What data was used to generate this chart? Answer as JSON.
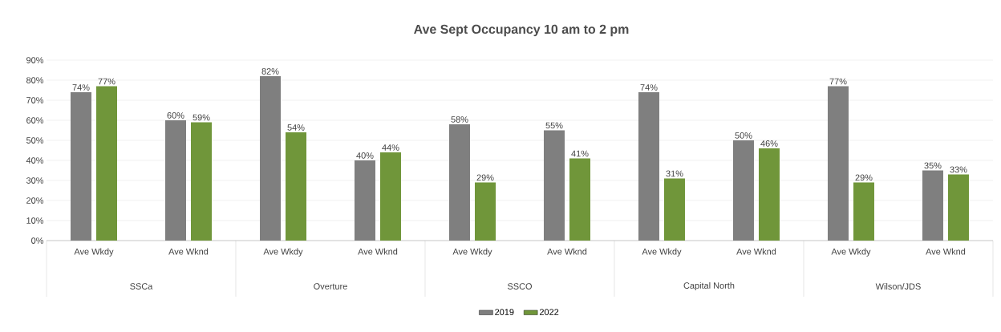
{
  "chart_data": {
    "type": "bar",
    "title": "Ave Sept Occupancy 10 am to 2 pm",
    "categories": [
      "Ave Wkdy",
      "Ave Wknd",
      "Ave Wkdy",
      "Ave Wknd",
      "Ave Wkdy",
      "Ave Wknd",
      "Ave Wkdy",
      "Ave Wknd",
      "Ave Wkdy",
      "Ave Wknd"
    ],
    "annotations": [
      "SSCa",
      "Overture",
      "SSCO",
      "Capital North",
      "Wilson/JDS"
    ],
    "series": [
      {
        "name": "2019",
        "color": "#7f7f7f",
        "values": [
          74,
          60,
          82,
          40,
          58,
          55,
          74,
          50,
          77,
          35
        ],
        "value_labels": [
          "74%",
          "60%",
          "82%",
          "40%",
          "58%",
          "55%",
          "74%",
          "50%",
          "77%",
          "35%"
        ]
      },
      {
        "name": "2022",
        "color": "#70963a",
        "values": [
          77,
          59,
          54,
          44,
          29,
          41,
          31,
          46,
          29,
          33
        ],
        "value_labels": [
          "77%",
          "59%",
          "54%",
          "44%",
          "29%",
          "41%",
          "31%",
          "46%",
          "29%",
          "33%"
        ]
      }
    ],
    "ylim": [
      0,
      90
    ],
    "yticks": [
      {
        "value": 0,
        "label": "0%"
      },
      {
        "value": 10,
        "label": "10%"
      },
      {
        "value": 20,
        "label": "20%"
      },
      {
        "value": 30,
        "label": "30%"
      },
      {
        "value": 40,
        "label": "40%"
      },
      {
        "value": 50,
        "label": "50%"
      },
      {
        "value": 60,
        "label": "60%"
      },
      {
        "value": 70,
        "label": "70%"
      },
      {
        "value": 80,
        "label": "80%"
      },
      {
        "value": 90,
        "label": "90%"
      }
    ],
    "grid": "y",
    "legend": "bottom"
  }
}
